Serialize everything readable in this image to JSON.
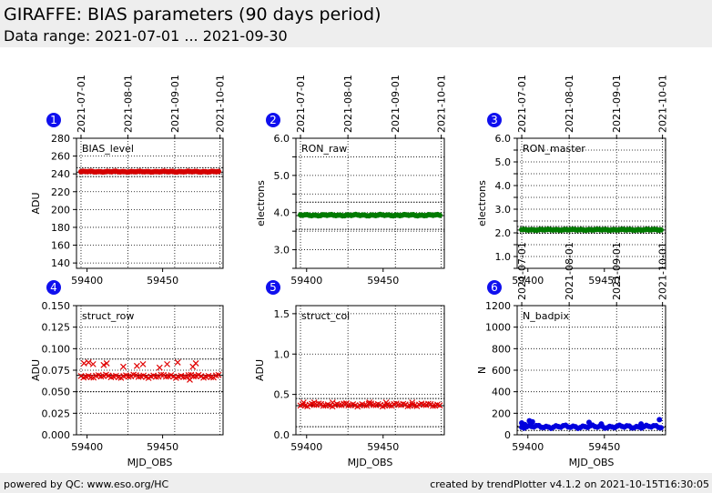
{
  "header": {
    "title": "GIRAFFE: BIAS parameters (90 days period)",
    "subtitle": "Data range: 2021-07-01 ... 2021-09-30"
  },
  "footer": {
    "left": "powered by QC: www.eso.org/HC",
    "right": "created by trendPlotter v4.1.2 on 2021-10-15T16:30:05"
  },
  "chart_data": [
    {
      "type": "scatter",
      "number": "1",
      "label": "BIAS_level",
      "ylabel": "ADU",
      "xlabel": "",
      "xlim": [
        59393,
        59490
      ],
      "ylim": [
        134,
        280
      ],
      "yticks": [
        140,
        160,
        180,
        200,
        220,
        240,
        260,
        280
      ],
      "yticklabels": [
        "140",
        "160",
        "180",
        "200",
        "220",
        "240",
        "260",
        "280"
      ],
      "xticks": [
        59400,
        59450
      ],
      "xticklabels": [
        "59400",
        "59450"
      ],
      "top_dates": [
        "2021-07-01",
        "2021-08-01",
        "2021-09-01",
        "2021-10-01"
      ],
      "top_mjd": [
        59396,
        59427,
        59458,
        59488
      ],
      "ref_line": 242,
      "thresholds": [
        237,
        247
      ],
      "marker": "circle",
      "color": "#d40000",
      "series": [
        {
          "x_start": 59396,
          "x_end": 59487,
          "count": 64,
          "base": 242.5,
          "amplitude": 0.5,
          "outliers": []
        }
      ]
    },
    {
      "type": "scatter",
      "number": "2",
      "label": "RON_raw",
      "ylabel": "electrons",
      "xlabel": "",
      "xlim": [
        59393,
        59490
      ],
      "ylim": [
        2.5,
        6.0
      ],
      "yticks": [
        2.5,
        3.0,
        3.5,
        4.0,
        4.5,
        5.0,
        5.5,
        6.0
      ],
      "yticklabels": [
        "",
        "3.0",
        "",
        "4.0",
        "",
        "5.0",
        "",
        "6.0"
      ],
      "xticks": [
        59400,
        59450
      ],
      "xticklabels": [
        "59400",
        "59450"
      ],
      "top_dates": [
        "2021-07-01",
        "2021-08-01",
        "2021-09-01",
        "2021-10-01"
      ],
      "top_mjd": [
        59396,
        59427,
        59458,
        59488
      ],
      "ref_line": 3.92,
      "thresholds": [
        3.55,
        4.28
      ],
      "marker": "circle",
      "color": "#007a00",
      "series": [
        {
          "x_start": 59396,
          "x_end": 59487,
          "count": 64,
          "base": 3.93,
          "amplitude": 0.02,
          "outliers": []
        }
      ]
    },
    {
      "type": "scatter",
      "number": "3",
      "label": "RON_master",
      "ylabel": "electrons",
      "xlabel": "",
      "xlim": [
        59393,
        59490
      ],
      "ylim": [
        0.5,
        6.0
      ],
      "yticks": [
        0.5,
        1.0,
        1.5,
        2.0,
        2.5,
        3.0,
        3.5,
        4.0,
        4.5,
        5.0,
        5.5,
        6.0
      ],
      "yticklabels": [
        "",
        "1.0",
        "",
        "2.0",
        "",
        "3.0",
        "",
        "4.0",
        "",
        "5.0",
        "",
        "6.0"
      ],
      "xticks": [
        59400,
        59450
      ],
      "xticklabels": [
        "59400",
        "59450"
      ],
      "top_dates": [
        "2021-07-01",
        "2021-08-01",
        "2021-09-01",
        "2021-10-01"
      ],
      "top_mjd": [
        59396,
        59427,
        59458,
        59488
      ],
      "ref_line": 2.12,
      "thresholds": [
        1.98,
        2.27
      ],
      "marker": "circle",
      "color": "#007a00",
      "series": [
        {
          "x_start": 59396,
          "x_end": 59487,
          "count": 64,
          "base": 2.13,
          "amplitude": 0.02,
          "outliers": []
        }
      ]
    },
    {
      "type": "scatter",
      "number": "4",
      "label": "struct_row",
      "ylabel": "ADU",
      "xlabel": "MJD_OBS",
      "xlim": [
        59393,
        59490
      ],
      "ylim": [
        0.0,
        0.15
      ],
      "yticks": [
        0.0,
        0.025,
        0.05,
        0.075,
        0.1,
        0.125,
        0.15
      ],
      "yticklabels": [
        "0.000",
        "0.025",
        "0.050",
        "0.075",
        "0.100",
        "0.125",
        "0.150"
      ],
      "xticks": [
        59400,
        59450
      ],
      "xticklabels": [
        "59400",
        "59450"
      ],
      "top_dates": [],
      "top_mjd": [],
      "ref_line": 0.069,
      "thresholds": [
        0.05,
        0.088
      ],
      "marker": "x",
      "color": "#e00000",
      "series": [
        {
          "x_start": 59396,
          "x_end": 59487,
          "count": 56,
          "base": 0.068,
          "amplitude": 0.002,
          "outliers": [
            [
              59398,
              0.083
            ],
            [
              59401,
              0.084
            ],
            [
              59404,
              0.082
            ],
            [
              59411,
              0.081
            ],
            [
              59413,
              0.083
            ],
            [
              59424,
              0.079
            ],
            [
              59433,
              0.08
            ],
            [
              59437,
              0.082
            ],
            [
              59448,
              0.078
            ],
            [
              59453,
              0.082
            ],
            [
              59460,
              0.084
            ],
            [
              59470,
              0.079
            ],
            [
              59472,
              0.083
            ],
            [
              59468,
              0.064
            ]
          ]
        }
      ]
    },
    {
      "type": "scatter",
      "number": "5",
      "label": "struct_col",
      "ylabel": "ADU",
      "xlabel": "MJD_OBS",
      "xlim": [
        59393,
        59490
      ],
      "ylim": [
        0.0,
        1.6
      ],
      "yticks": [
        0.0,
        0.5,
        1.0,
        1.5
      ],
      "yticklabels": [
        "0.0",
        "0.5",
        "1.0",
        "1.5"
      ],
      "xticks": [
        59400,
        59450
      ],
      "xticklabels": [
        "59400",
        "59450"
      ],
      "top_dates": [],
      "top_mjd": [],
      "ref_line": 0.36,
      "thresholds": [
        0.1,
        0.45
      ],
      "marker": "x",
      "color": "#e00000",
      "series": [
        {
          "x_start": 59396,
          "x_end": 59487,
          "count": 62,
          "base": 0.37,
          "amplitude": 0.02,
          "outliers": [
            [
              59398,
              0.4
            ],
            [
              59405,
              0.4
            ],
            [
              59417,
              0.4
            ],
            [
              59426,
              0.39
            ],
            [
              59441,
              0.4
            ],
            [
              59452,
              0.4
            ],
            [
              59469,
              0.4
            ]
          ]
        }
      ]
    },
    {
      "type": "scatter",
      "number": "6",
      "label": "N_badpix",
      "ylabel": "N",
      "xlabel": "MJD_OBS",
      "xlim": [
        59393,
        59490
      ],
      "ylim": [
        0,
        1200
      ],
      "yticks": [
        0,
        200,
        400,
        600,
        800,
        1000,
        1200
      ],
      "yticklabels": [
        "0",
        "200",
        "400",
        "600",
        "800",
        "1000",
        "1200"
      ],
      "xticks": [
        59400,
        59450
      ],
      "xticklabels": [
        "59400",
        "59450"
      ],
      "top_dates": [
        "2021-07-01",
        "2021-08-01",
        "2021-09-01",
        "2021-10-01"
      ],
      "top_mjd": [
        59396,
        59427,
        59458,
        59488
      ],
      "ref_line": 70,
      "thresholds": [
        40,
        80
      ],
      "marker": "circle",
      "color": "#0000dd",
      "series": [
        {
          "x_start": 59396,
          "x_end": 59487,
          "count": 58,
          "base": 75,
          "amplitude": 15,
          "outliers": [
            [
              59396,
              110
            ],
            [
              59398,
              95
            ],
            [
              59401,
              130
            ],
            [
              59403,
              120
            ],
            [
              59440,
              115
            ],
            [
              59448,
              100
            ],
            [
              59474,
              100
            ],
            [
              59486,
              140
            ]
          ]
        }
      ]
    }
  ]
}
